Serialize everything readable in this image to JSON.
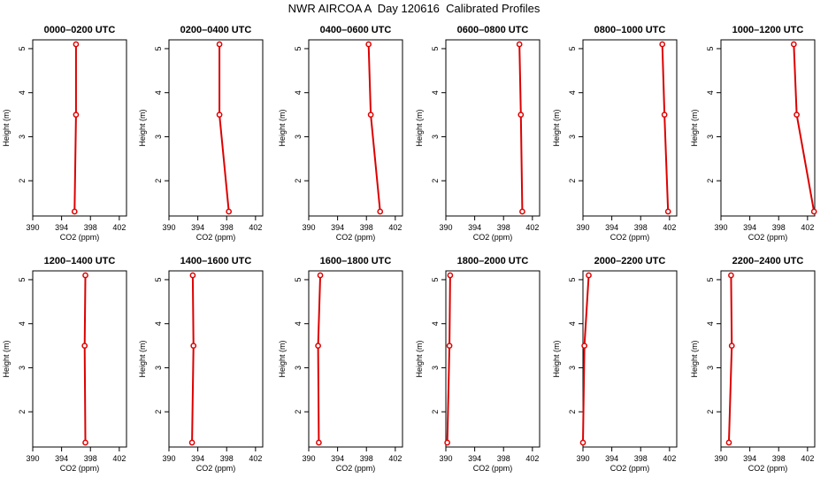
{
  "figure": {
    "title": "NWR AIRCOA A  Day 120616  Calibrated Profiles"
  },
  "colors": {
    "series": "#dd0000",
    "axis": "#000000"
  },
  "chart_data": [
    {
      "type": "line",
      "title": "0000–0200 UTC",
      "xlabel": "CO2 (ppm)",
      "ylabel": "Height (m)",
      "xlim": [
        390,
        403
      ],
      "ylim": [
        1.2,
        5.2
      ],
      "xticks": [
        390,
        394,
        398,
        402
      ],
      "yticks": [
        2,
        3,
        4,
        5
      ],
      "x": [
        395.8,
        396.0,
        396.0
      ],
      "y": [
        1.3,
        3.5,
        5.1
      ]
    },
    {
      "type": "line",
      "title": "0200–0400 UTC",
      "xlabel": "CO2 (ppm)",
      "ylabel": "Height (m)",
      "xlim": [
        390,
        403
      ],
      "ylim": [
        1.2,
        5.2
      ],
      "xticks": [
        390,
        394,
        398,
        402
      ],
      "yticks": [
        2,
        3,
        4,
        5
      ],
      "x": [
        398.3,
        397.0,
        397.0
      ],
      "y": [
        1.3,
        3.5,
        5.1
      ]
    },
    {
      "type": "line",
      "title": "0400–0600 UTC",
      "xlabel": "CO2 (ppm)",
      "ylabel": "Height (m)",
      "xlim": [
        390,
        403
      ],
      "ylim": [
        1.2,
        5.2
      ],
      "xticks": [
        390,
        394,
        398,
        402
      ],
      "yticks": [
        2,
        3,
        4,
        5
      ],
      "x": [
        399.9,
        398.6,
        398.3
      ],
      "y": [
        1.3,
        3.5,
        5.1
      ]
    },
    {
      "type": "line",
      "title": "0600–0800 UTC",
      "xlabel": "CO2 (ppm)",
      "ylabel": "Height (m)",
      "xlim": [
        390,
        403
      ],
      "ylim": [
        1.2,
        5.2
      ],
      "xticks": [
        390,
        394,
        398,
        402
      ],
      "yticks": [
        2,
        3,
        4,
        5
      ],
      "x": [
        400.6,
        400.4,
        400.2
      ],
      "y": [
        1.3,
        3.5,
        5.1
      ]
    },
    {
      "type": "line",
      "title": "0800–1000 UTC",
      "xlabel": "CO2 (ppm)",
      "ylabel": "Height (m)",
      "xlim": [
        390,
        403
      ],
      "ylim": [
        1.2,
        5.2
      ],
      "xticks": [
        390,
        394,
        398,
        402
      ],
      "yticks": [
        2,
        3,
        4,
        5
      ],
      "x": [
        401.8,
        401.3,
        401.0
      ],
      "y": [
        1.3,
        3.5,
        5.1
      ]
    },
    {
      "type": "line",
      "title": "1000–1200 UTC",
      "xlabel": "CO2 (ppm)",
      "ylabel": "Height (m)",
      "xlim": [
        390,
        403
      ],
      "ylim": [
        1.2,
        5.2
      ],
      "xticks": [
        390,
        394,
        398,
        402
      ],
      "yticks": [
        2,
        3,
        4,
        5
      ],
      "x": [
        402.9,
        400.5,
        400.1
      ],
      "y": [
        1.3,
        3.5,
        5.1
      ]
    },
    {
      "type": "line",
      "title": "1200–1400 UTC",
      "xlabel": "CO2 (ppm)",
      "ylabel": "Height (m)",
      "xlim": [
        390,
        403
      ],
      "ylim": [
        1.2,
        5.2
      ],
      "xticks": [
        390,
        394,
        398,
        402
      ],
      "yticks": [
        2,
        3,
        4,
        5
      ],
      "x": [
        397.3,
        397.2,
        397.3
      ],
      "y": [
        1.3,
        3.5,
        5.1
      ]
    },
    {
      "type": "line",
      "title": "1400–1600 UTC",
      "xlabel": "CO2 (ppm)",
      "ylabel": "Height (m)",
      "xlim": [
        390,
        403
      ],
      "ylim": [
        1.2,
        5.2
      ],
      "xticks": [
        390,
        394,
        398,
        402
      ],
      "yticks": [
        2,
        3,
        4,
        5
      ],
      "x": [
        393.2,
        393.4,
        393.3
      ],
      "y": [
        1.3,
        3.5,
        5.1
      ]
    },
    {
      "type": "line",
      "title": "1600–1800 UTC",
      "xlabel": "CO2 (ppm)",
      "ylabel": "Height (m)",
      "xlim": [
        390,
        403
      ],
      "ylim": [
        1.2,
        5.2
      ],
      "xticks": [
        390,
        394,
        398,
        402
      ],
      "yticks": [
        2,
        3,
        4,
        5
      ],
      "x": [
        391.4,
        391.3,
        391.6
      ],
      "y": [
        1.3,
        3.5,
        5.1
      ]
    },
    {
      "type": "line",
      "title": "1800–2000 UTC",
      "xlabel": "CO2 (ppm)",
      "ylabel": "Height (m)",
      "xlim": [
        390,
        403
      ],
      "ylim": [
        1.2,
        5.2
      ],
      "xticks": [
        390,
        394,
        398,
        402
      ],
      "yticks": [
        2,
        3,
        4,
        5
      ],
      "x": [
        390.2,
        390.5,
        390.6
      ],
      "y": [
        1.3,
        3.5,
        5.1
      ]
    },
    {
      "type": "line",
      "title": "2000–2200 UTC",
      "xlabel": "CO2 (ppm)",
      "ylabel": "Height (m)",
      "xlim": [
        390,
        403
      ],
      "ylim": [
        1.2,
        5.2
      ],
      "xticks": [
        390,
        394,
        398,
        402
      ],
      "yticks": [
        2,
        3,
        4,
        5
      ],
      "x": [
        390.0,
        390.2,
        390.8
      ],
      "y": [
        1.3,
        3.5,
        5.1
      ]
    },
    {
      "type": "line",
      "title": "2200–2400 UTC",
      "xlabel": "CO2 (ppm)",
      "ylabel": "Height (m)",
      "xlim": [
        390,
        403
      ],
      "ylim": [
        1.2,
        5.2
      ],
      "xticks": [
        390,
        394,
        398,
        402
      ],
      "yticks": [
        2,
        3,
        4,
        5
      ],
      "x": [
        391.1,
        391.5,
        391.4
      ],
      "y": [
        1.3,
        3.5,
        5.1
      ]
    }
  ]
}
